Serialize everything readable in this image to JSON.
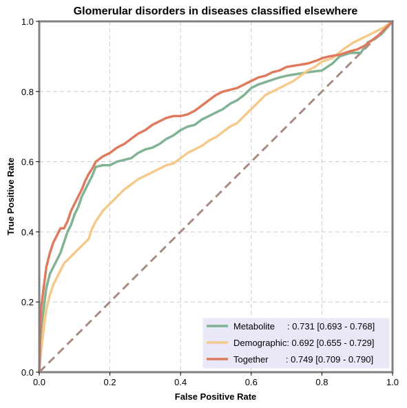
{
  "chart_data": {
    "type": "line",
    "title": "Glomerular disorders in diseases classified elsewhere",
    "xlabel": "False Positive Rate",
    "ylabel": "True Positive Rate",
    "xlim": [
      0,
      1
    ],
    "ylim": [
      0,
      1
    ],
    "xticks": [
      "0.0",
      "0.2",
      "0.4",
      "0.6",
      "0.8",
      "1.0"
    ],
    "yticks": [
      "0.0",
      "0.2",
      "0.4",
      "0.6",
      "0.8",
      "1.0"
    ],
    "grid": true,
    "legend_position": "lower-right",
    "diagonal": {
      "x": [
        0,
        1
      ],
      "y": [
        0,
        1
      ],
      "color": "#a88a80",
      "style": "dashed"
    },
    "series": [
      {
        "name": "Metabolite",
        "label": "Metabolite     : 0.731 [0.693 - 0.768]",
        "color": "#7fb394",
        "x": [
          0,
          0.005,
          0.01,
          0.015,
          0.02,
          0.03,
          0.04,
          0.05,
          0.06,
          0.07,
          0.08,
          0.09,
          0.1,
          0.11,
          0.12,
          0.13,
          0.14,
          0.15,
          0.16,
          0.18,
          0.2,
          0.22,
          0.24,
          0.26,
          0.28,
          0.3,
          0.32,
          0.34,
          0.36,
          0.38,
          0.4,
          0.42,
          0.44,
          0.46,
          0.48,
          0.5,
          0.52,
          0.54,
          0.56,
          0.58,
          0.6,
          0.62,
          0.65,
          0.68,
          0.7,
          0.73,
          0.76,
          0.8,
          0.83,
          0.85,
          0.88,
          0.91,
          0.93,
          0.95,
          0.97,
          1.0
        ],
        "y": [
          0,
          0.12,
          0.16,
          0.2,
          0.24,
          0.28,
          0.3,
          0.32,
          0.34,
          0.37,
          0.4,
          0.42,
          0.45,
          0.47,
          0.5,
          0.52,
          0.54,
          0.56,
          0.585,
          0.59,
          0.59,
          0.6,
          0.605,
          0.61,
          0.625,
          0.635,
          0.64,
          0.65,
          0.665,
          0.675,
          0.69,
          0.7,
          0.705,
          0.72,
          0.73,
          0.74,
          0.75,
          0.765,
          0.775,
          0.79,
          0.81,
          0.82,
          0.83,
          0.84,
          0.845,
          0.85,
          0.855,
          0.86,
          0.88,
          0.9,
          0.91,
          0.91,
          0.94,
          0.95,
          0.965,
          1.0
        ]
      },
      {
        "name": "Demographic",
        "label": "Demographic: 0.692 [0.655 - 0.729]",
        "color": "#f5c98a",
        "x": [
          0,
          0.005,
          0.01,
          0.015,
          0.02,
          0.03,
          0.04,
          0.05,
          0.06,
          0.07,
          0.08,
          0.09,
          0.1,
          0.11,
          0.12,
          0.13,
          0.14,
          0.15,
          0.16,
          0.18,
          0.2,
          0.22,
          0.24,
          0.26,
          0.28,
          0.3,
          0.32,
          0.34,
          0.36,
          0.38,
          0.4,
          0.42,
          0.44,
          0.46,
          0.48,
          0.5,
          0.52,
          0.54,
          0.56,
          0.58,
          0.6,
          0.62,
          0.64,
          0.66,
          0.68,
          0.7,
          0.72,
          0.74,
          0.76,
          0.78,
          0.8,
          0.83,
          0.86,
          0.89,
          0.91,
          0.93,
          0.95,
          0.97,
          1.0
        ],
        "y": [
          0,
          0.06,
          0.1,
          0.14,
          0.18,
          0.22,
          0.25,
          0.27,
          0.29,
          0.31,
          0.32,
          0.33,
          0.34,
          0.35,
          0.36,
          0.37,
          0.38,
          0.41,
          0.43,
          0.46,
          0.48,
          0.5,
          0.52,
          0.535,
          0.55,
          0.56,
          0.57,
          0.58,
          0.59,
          0.595,
          0.61,
          0.625,
          0.635,
          0.645,
          0.66,
          0.67,
          0.685,
          0.7,
          0.71,
          0.73,
          0.75,
          0.77,
          0.79,
          0.8,
          0.81,
          0.82,
          0.83,
          0.845,
          0.86,
          0.87,
          0.885,
          0.895,
          0.92,
          0.94,
          0.95,
          0.96,
          0.97,
          0.98,
          1.0
        ]
      },
      {
        "name": "Together",
        "label": "Together       : 0.749 [0.709 - 0.790]",
        "color": "#e07a5f",
        "x": [
          0,
          0.005,
          0.01,
          0.015,
          0.02,
          0.03,
          0.04,
          0.05,
          0.06,
          0.07,
          0.08,
          0.09,
          0.1,
          0.11,
          0.12,
          0.13,
          0.14,
          0.15,
          0.16,
          0.18,
          0.2,
          0.22,
          0.24,
          0.26,
          0.28,
          0.3,
          0.32,
          0.34,
          0.36,
          0.38,
          0.4,
          0.42,
          0.44,
          0.46,
          0.48,
          0.5,
          0.52,
          0.54,
          0.56,
          0.58,
          0.6,
          0.62,
          0.64,
          0.66,
          0.68,
          0.7,
          0.73,
          0.76,
          0.79,
          0.8,
          0.82,
          0.85,
          0.88,
          0.9,
          0.92,
          0.94,
          0.96,
          0.98,
          1.0
        ],
        "y": [
          0,
          0.18,
          0.22,
          0.26,
          0.3,
          0.34,
          0.37,
          0.39,
          0.41,
          0.41,
          0.43,
          0.46,
          0.48,
          0.5,
          0.52,
          0.545,
          0.565,
          0.58,
          0.6,
          0.615,
          0.625,
          0.64,
          0.65,
          0.665,
          0.68,
          0.69,
          0.705,
          0.715,
          0.725,
          0.73,
          0.73,
          0.735,
          0.745,
          0.76,
          0.775,
          0.79,
          0.8,
          0.805,
          0.81,
          0.82,
          0.83,
          0.84,
          0.845,
          0.855,
          0.86,
          0.87,
          0.875,
          0.88,
          0.89,
          0.895,
          0.9,
          0.905,
          0.915,
          0.92,
          0.93,
          0.945,
          0.96,
          0.98,
          1.0
        ]
      }
    ]
  }
}
